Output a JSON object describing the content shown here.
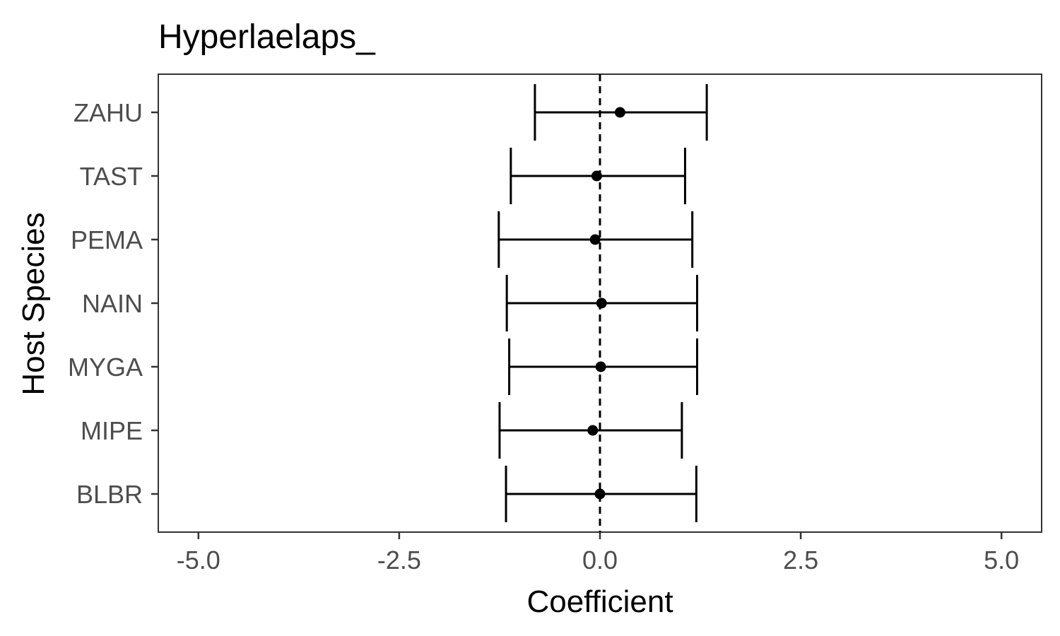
{
  "chart_data": {
    "type": "scatter",
    "title": "Hyperlaelaps_",
    "xlabel": "Coefficient",
    "ylabel": "Host Species",
    "xlim": [
      -5.5,
      5.5
    ],
    "x_ticks": [
      -5.0,
      -2.5,
      0.0,
      2.5,
      5.0
    ],
    "x_tick_labels": [
      "-5.0",
      "-2.5",
      "0.0",
      "2.5",
      "5.0"
    ],
    "reference_line": {
      "x": 0,
      "style": "dashed"
    },
    "grid": false,
    "legend": "none",
    "categories": [
      "BLBR",
      "MIPE",
      "MYGA",
      "NAIN",
      "PEMA",
      "TAST",
      "ZAHU"
    ],
    "estimates": [
      0.0,
      -0.09,
      0.01,
      0.02,
      -0.06,
      -0.04,
      0.25
    ],
    "lower": [
      -1.17,
      -1.25,
      -1.13,
      -1.16,
      -1.26,
      -1.11,
      -0.81
    ],
    "upper": [
      1.2,
      1.02,
      1.21,
      1.21,
      1.15,
      1.06,
      1.33
    ]
  }
}
